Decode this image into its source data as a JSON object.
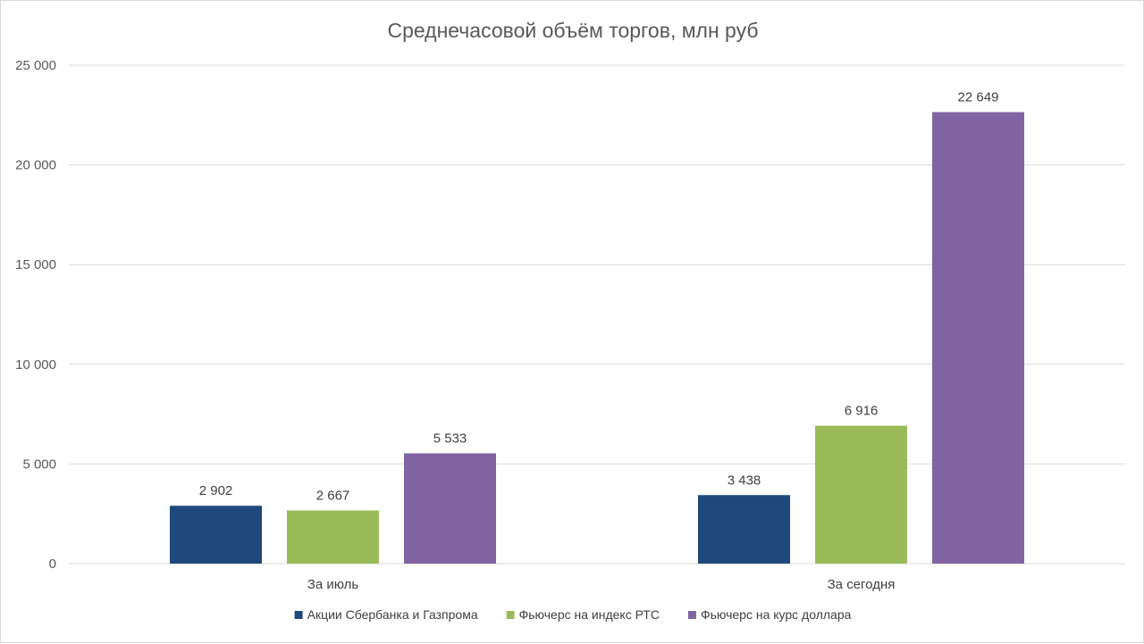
{
  "chart_data": {
    "type": "bar",
    "title": "Среднечасовой объём торгов, млн руб",
    "categories": [
      "За июль",
      "За сегодня"
    ],
    "series": [
      {
        "name": "Акции Сбербанка и Газпрома",
        "values": [
          2902,
          3438
        ],
        "labels": [
          "2 902",
          "3 438"
        ],
        "color": "#1f497d"
      },
      {
        "name": "Фьючерс на индекс РТС",
        "values": [
          2667,
          6916
        ],
        "labels": [
          "2 667",
          "6 916"
        ],
        "color": "#9bbb59"
      },
      {
        "name": "Фьючерс на курс доллара",
        "values": [
          5533,
          22649
        ],
        "labels": [
          "5 533",
          "22 649"
        ],
        "color": "#8064a2"
      }
    ],
    "ylim": [
      0,
      25000
    ],
    "yticks": [
      0,
      5000,
      10000,
      15000,
      20000,
      25000
    ],
    "ytick_labels": [
      "0",
      "5 000",
      "10 000",
      "15 000",
      "20 000",
      "25 000"
    ],
    "grid": true,
    "legend_position": "bottom",
    "xlabel": "",
    "ylabel": ""
  }
}
